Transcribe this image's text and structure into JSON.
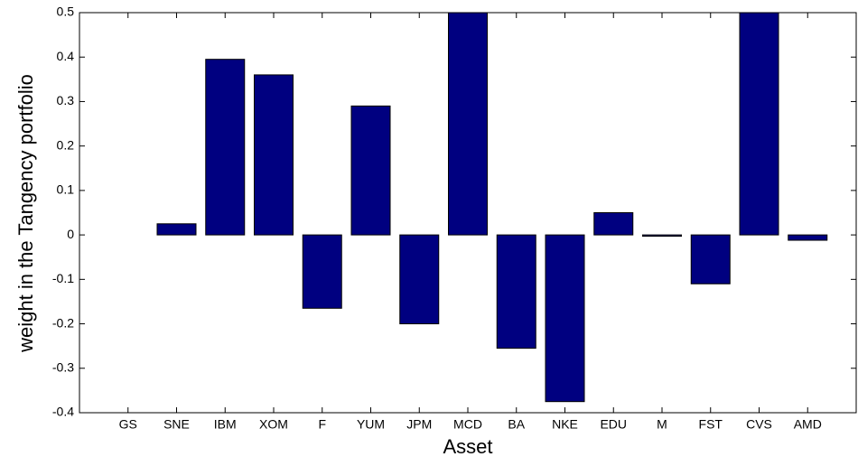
{
  "chart_data": {
    "type": "bar",
    "x_label": "Asset",
    "y_label": "weight in the Tangency portfolio",
    "categories": [
      "GS",
      "SNE",
      "IBM",
      "XOM",
      "F",
      "YUM",
      "JPM",
      "MCD",
      "BA",
      "NKE",
      "EDU",
      "M",
      "FST",
      "CVS",
      "AMD"
    ],
    "values": [
      0,
      0.025,
      0.395,
      0.36,
      -0.165,
      0.29,
      -0.2,
      0.5,
      -0.255,
      -0.375,
      0.05,
      -0.003,
      -0.11,
      0.5,
      -0.012
    ],
    "color": "#000080",
    "ylim": [
      -0.4,
      0.5
    ],
    "yticks": [
      -0.4,
      -0.3,
      -0.2,
      -0.1,
      0,
      0.1,
      0.2,
      0.3,
      0.4,
      0.5
    ]
  }
}
